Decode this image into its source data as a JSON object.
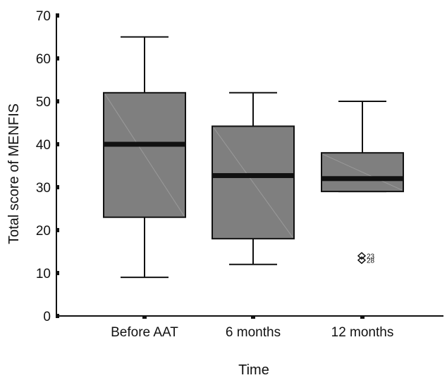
{
  "chart_data": {
    "type": "boxplot",
    "title": "",
    "xlabel": "Time",
    "ylabel": "Total score of MENFIS",
    "ylim": [
      0,
      70
    ],
    "yticks": [
      0,
      10,
      20,
      30,
      40,
      50,
      60,
      70
    ],
    "grid": false,
    "legend": "none",
    "categories": [
      "Before AAT",
      "6 months",
      "12 months"
    ],
    "boxes": [
      {
        "category": "Before AAT",
        "whisker_low": 9,
        "q1": 23,
        "median": 40,
        "q3": 52,
        "whisker_high": 65,
        "outliers": []
      },
      {
        "category": "6 months",
        "whisker_low": 12,
        "q1": 18,
        "median": 32.7,
        "q3": 44.2,
        "whisker_high": 52,
        "outliers": []
      },
      {
        "category": "12 months",
        "whisker_low": 29,
        "q1": 29,
        "median": 32,
        "q3": 38,
        "whisker_high": 50,
        "outliers": [
          {
            "value": 14,
            "label": "23"
          },
          {
            "value": 13,
            "label": "28"
          }
        ]
      }
    ],
    "colors": {
      "box_fill": "#7f7f7f",
      "stroke": "#111111",
      "median": "#111111",
      "axis": "#111111"
    }
  }
}
